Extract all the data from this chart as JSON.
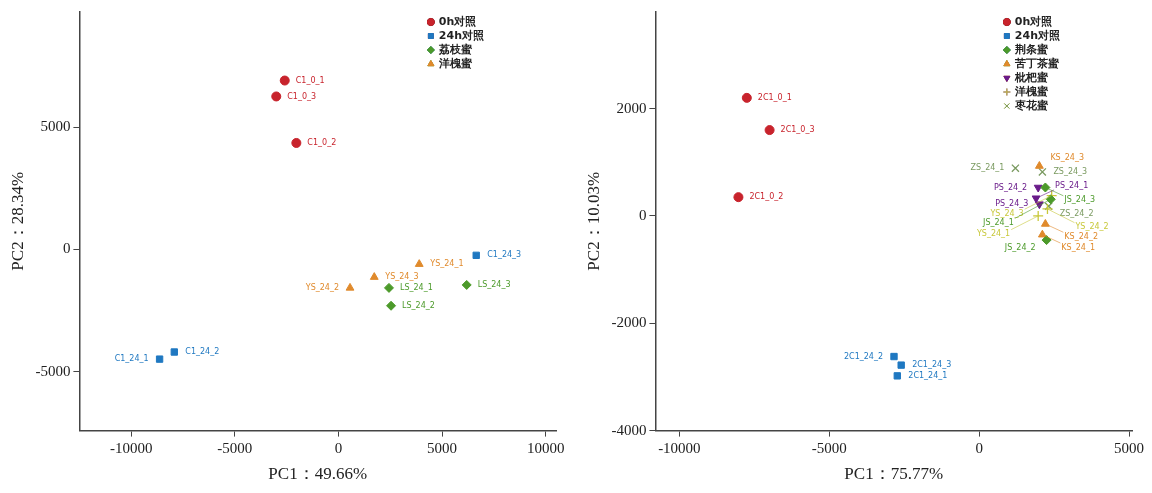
{
  "chart_data": [
    {
      "type": "scatter",
      "xlabel": "PC1：49.66%",
      "ylabel": "PC2：28.34%",
      "xlim": [
        -12500,
        10500
      ],
      "ylim": [
        -7400,
        9700
      ],
      "xticks": [
        -10000,
        -5000,
        0,
        5000,
        10000
      ],
      "yticks": [
        -5000,
        0,
        5000
      ],
      "grid": false,
      "legend": "top right",
      "series": [
        {
          "name": "0h对照",
          "color": "#c8232c",
          "marker": "circle",
          "x": [
            -2590,
            -2030,
            -3000
          ],
          "values": [
            6900,
            4350,
            6250
          ]
        },
        {
          "name": "24h对照",
          "color": "#1f78c1",
          "marker": "square",
          "x": [
            -8630,
            -7920,
            6650
          ],
          "values": [
            -4480,
            -4190,
            -240
          ]
        },
        {
          "name": "荔枝蜜",
          "color": "#4c9a2a",
          "marker": "diamond",
          "x": [
            2440,
            2540,
            6190
          ],
          "values": [
            -1570,
            -2300,
            -1450
          ]
        },
        {
          "name": "洋槐蜜",
          "color": "#e08a2c",
          "marker": "triangle",
          "x": [
            3900,
            560,
            1730
          ],
          "values": [
            -600,
            -1570,
            -1130
          ]
        }
      ],
      "annotations": [
        {
          "text": "C1_0_3",
          "x": -3000,
          "y": 6250
        },
        {
          "text": "C1_0_1",
          "x": -2590,
          "y": 6900
        },
        {
          "text": "C1_0_2",
          "x": -2030,
          "y": 4350
        },
        {
          "text": "C1_24_2",
          "x": -7920,
          "y": -4190
        },
        {
          "text": "C1_24_1",
          "x": -8630,
          "y": -4480
        },
        {
          "text": "C1_24_3",
          "x": 6650,
          "y": -240
        },
        {
          "text": "YS_24_1",
          "x": 3900,
          "y": -600
        },
        {
          "text": "YS_24_3",
          "x": 1730,
          "y": -1130
        },
        {
          "text": "YS_24_2",
          "x": 560,
          "y": -1570
        },
        {
          "text": "LS_24_1",
          "x": 2440,
          "y": -1570
        },
        {
          "text": "LS_24_2",
          "x": 2540,
          "y": -2300
        },
        {
          "text": "LS_24_3",
          "x": 6190,
          "y": -1450
        }
      ]
    },
    {
      "type": "scatter",
      "xlabel": "PC1：75.77%",
      "ylabel": "PC2：10.03%",
      "xlim": [
        -10800,
        5100
      ],
      "ylim": [
        -4000,
        3800
      ],
      "xticks": [
        -10000,
        -5000,
        0,
        5000
      ],
      "yticks": [
        -4000,
        -2000,
        0,
        2000
      ],
      "grid": false,
      "legend": "top right",
      "series": [
        {
          "name": "0h对照",
          "color": "#c8232c",
          "marker": "circle",
          "x": [
            -7750,
            -8030,
            -6990
          ],
          "values": [
            2200,
            350,
            1600
          ]
        },
        {
          "name": "24h对照",
          "color": "#1f78c1",
          "marker": "square",
          "x": [
            -2730,
            -2840,
            -2600
          ],
          "values": [
            -2980,
            -2620,
            -2780
          ]
        },
        {
          "name": "荆条蜜",
          "color": "#4c9a2a",
          "marker": "diamond",
          "x": [
            2390,
            2250,
            2210
          ],
          "values": [
            310,
            -450,
            530
          ]
        },
        {
          "name": "苦丁茶蜜",
          "color": "#e08a2c",
          "marker": "triangle",
          "x": [
            2110,
            2210,
            2010
          ],
          "values": [
            -350,
            -150,
            930
          ]
        },
        {
          "name": "枇杷蜜",
          "color": "#6a1b8a",
          "marker": "triangle-down",
          "x": [
            1900,
            1970,
            2010
          ],
          "values": [
            330,
            530,
            220
          ]
        },
        {
          "name": "洋槐蜜",
          "color": "#c8c83a",
          "marker": "plus",
          "x": [
            1970,
            2280,
            2420
          ],
          "values": [
            0,
            130,
            380
          ]
        },
        {
          "name": "枣花蜜",
          "color": "#7a9a60",
          "marker": "cross",
          "x": [
            1210,
            2320,
            2110
          ],
          "values": [
            890,
            180,
            820
          ]
        }
      ],
      "annotations": [
        {
          "text": "2C1_0_1",
          "x": -7750,
          "y": 2200
        },
        {
          "text": "2C1_0_3",
          "x": -6990,
          "y": 1600
        },
        {
          "text": "2C1_0_2",
          "x": -8030,
          "y": 350
        },
        {
          "text": "2C1_24_2",
          "x": -2840,
          "y": -2620
        },
        {
          "text": "2C1_24_3",
          "x": -2600,
          "y": -2780
        },
        {
          "text": "2C1_24_1",
          "x": -2730,
          "y": -2980
        },
        {
          "text": "ZS_24_1",
          "x": 1210,
          "y": 890
        },
        {
          "text": "ZS_24_3",
          "x": 2110,
          "y": 820
        },
        {
          "text": "KS_24_3",
          "x": 2010,
          "y": 930
        },
        {
          "text": "PS_24_3",
          "x": 2010,
          "y": 220
        },
        {
          "text": "PS_24_2",
          "x": 1970,
          "y": 530
        },
        {
          "text": "PS_24_1",
          "x": 1900,
          "y": 330
        },
        {
          "text": "JS_24_3",
          "x": 2210,
          "y": 530
        },
        {
          "text": "ZS_24_2",
          "x": 2320,
          "y": 180
        },
        {
          "text": "YS_24_3",
          "x": 2420,
          "y": 380
        },
        {
          "text": "JS_24_1",
          "x": 2390,
          "y": 310
        },
        {
          "text": "YS_24_2",
          "x": 2280,
          "y": 130
        },
        {
          "text": "YS_24_1",
          "x": 1970,
          "y": 0
        },
        {
          "text": "KS_24_2",
          "x": 2210,
          "y": -150
        },
        {
          "text": "KS_24_1",
          "x": 2110,
          "y": -350
        },
        {
          "text": "JS_24_2",
          "x": 2250,
          "y": -450
        }
      ]
    }
  ]
}
